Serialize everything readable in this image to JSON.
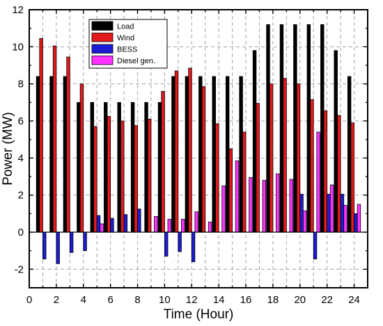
{
  "chart_data": {
    "type": "bar",
    "xlabel": "Time (Hour)",
    "ylabel": "Power (MW)",
    "xlim": [
      0,
      25
    ],
    "ylim": [
      -3,
      12
    ],
    "x_ticks": [
      0,
      2,
      4,
      6,
      8,
      10,
      12,
      14,
      16,
      18,
      20,
      22,
      24
    ],
    "y_ticks": [
      -2,
      0,
      2,
      4,
      6,
      8,
      10,
      12
    ],
    "grid": true,
    "legend_position": "top-left",
    "x": [
      1,
      2,
      3,
      4,
      5,
      6,
      7,
      8,
      9,
      10,
      11,
      12,
      13,
      14,
      15,
      16,
      17,
      18,
      19,
      20,
      21,
      22,
      23,
      24
    ],
    "series": [
      {
        "name": "Load",
        "color": "#000000",
        "values": [
          8.4,
          8.4,
          8.4,
          7.0,
          7.0,
          7.0,
          7.0,
          7.0,
          7.0,
          7.0,
          8.4,
          8.4,
          8.4,
          8.4,
          8.4,
          8.4,
          9.8,
          11.2,
          11.2,
          11.2,
          11.2,
          11.2,
          9.8,
          8.4
        ]
      },
      {
        "name": "Wind",
        "color": "#e31a1c",
        "values": [
          10.45,
          10.05,
          9.45,
          8.0,
          5.7,
          6.25,
          6.0,
          5.75,
          6.1,
          7.6,
          8.7,
          8.85,
          7.85,
          5.85,
          4.5,
          5.4,
          6.95,
          8.0,
          8.3,
          8.0,
          7.15,
          6.55,
          6.3,
          5.9
        ]
      },
      {
        "name": "BESS",
        "color": "#1c1cd6",
        "values": [
          -1.45,
          -1.7,
          -1.1,
          -1.0,
          0.9,
          0.75,
          0.95,
          1.25,
          0.0,
          -1.3,
          -1.05,
          -1.6,
          0.0,
          0.0,
          0.0,
          0.0,
          0.0,
          0.0,
          0.0,
          2.05,
          -1.45,
          2.05,
          2.05,
          1.0
        ]
      },
      {
        "name": "Diesel gen.",
        "color": "#ff33ff",
        "values": [
          0,
          0,
          0,
          0,
          0.45,
          0,
          0,
          0,
          0.85,
          0.7,
          0.7,
          1.1,
          0.55,
          2.5,
          3.85,
          2.95,
          2.8,
          3.15,
          2.85,
          1.15,
          5.4,
          2.55,
          1.45,
          1.5
        ]
      }
    ]
  }
}
